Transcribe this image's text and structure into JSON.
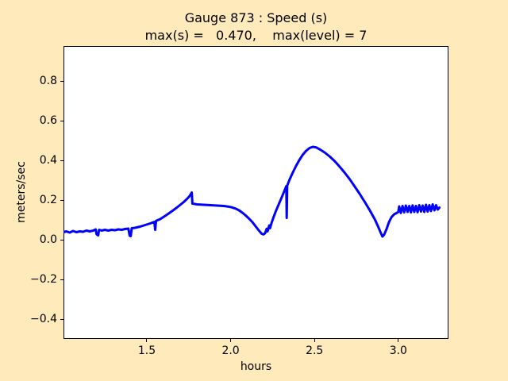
{
  "figure": {
    "background_color": "#ffeabb",
    "plot_background_color": "#ffffff",
    "spine_color": "#000000",
    "title_line1": "Gauge 873 : Speed (s)",
    "title_line2": "max(s) =   0.470,    max(level) = 7",
    "xlabel": "hours",
    "ylabel": "meters/sec"
  },
  "chart_data": {
    "type": "line",
    "title": "Gauge 873 : Speed (s)",
    "subtitle": "max(s) =   0.470,    max(level) = 7",
    "max_s": 0.47,
    "max_level": 7,
    "xlabel": "hours",
    "ylabel": "meters/sec",
    "xlim": [
      1.003,
      3.299
    ],
    "ylim": [
      -0.5,
      0.976
    ],
    "xticks": [
      1.5,
      2.0,
      2.5,
      3.0
    ],
    "xtick_labels": [
      "1.5",
      "2.0",
      "2.5",
      "3.0"
    ],
    "yticks": [
      -0.4,
      -0.2,
      0.0,
      0.2,
      0.4,
      0.6,
      0.8
    ],
    "ytick_labels": [
      "−0.4",
      "−0.2",
      "0.0",
      "0.2",
      "0.4",
      "0.6",
      "0.8"
    ],
    "grid": false,
    "legend": null,
    "series": [
      {
        "name": "speed",
        "color": "#0000ff",
        "line_width": 3,
        "points": [
          [
            1.003,
            0.038
          ],
          [
            1.02,
            0.042
          ],
          [
            1.04,
            0.036
          ],
          [
            1.06,
            0.044
          ],
          [
            1.08,
            0.038
          ],
          [
            1.1,
            0.042
          ],
          [
            1.12,
            0.04
          ],
          [
            1.14,
            0.046
          ],
          [
            1.16,
            0.042
          ],
          [
            1.18,
            0.046
          ],
          [
            1.195,
            0.052
          ],
          [
            1.2,
            0.028
          ],
          [
            1.21,
            0.022
          ],
          [
            1.215,
            0.05
          ],
          [
            1.23,
            0.046
          ],
          [
            1.25,
            0.05
          ],
          [
            1.27,
            0.046
          ],
          [
            1.29,
            0.05
          ],
          [
            1.31,
            0.048
          ],
          [
            1.33,
            0.052
          ],
          [
            1.35,
            0.05
          ],
          [
            1.37,
            0.054
          ],
          [
            1.39,
            0.056
          ],
          [
            1.398,
            0.02
          ],
          [
            1.404,
            0.018
          ],
          [
            1.41,
            0.058
          ],
          [
            1.43,
            0.06
          ],
          [
            1.46,
            0.066
          ],
          [
            1.49,
            0.074
          ],
          [
            1.52,
            0.082
          ],
          [
            1.545,
            0.09
          ],
          [
            1.55,
            0.05
          ],
          [
            1.555,
            0.095
          ],
          [
            1.58,
            0.104
          ],
          [
            1.6,
            0.115
          ],
          [
            1.62,
            0.126
          ],
          [
            1.64,
            0.138
          ],
          [
            1.66,
            0.15
          ],
          [
            1.68,
            0.163
          ],
          [
            1.7,
            0.176
          ],
          [
            1.72,
            0.19
          ],
          [
            1.74,
            0.206
          ],
          [
            1.755,
            0.22
          ],
          [
            1.768,
            0.238
          ],
          [
            1.772,
            0.182
          ],
          [
            1.8,
            0.178
          ],
          [
            1.84,
            0.176
          ],
          [
            1.88,
            0.174
          ],
          [
            1.92,
            0.172
          ],
          [
            1.96,
            0.17
          ],
          [
            2.0,
            0.165
          ],
          [
            2.03,
            0.157
          ],
          [
            2.05,
            0.148
          ],
          [
            2.07,
            0.136
          ],
          [
            2.09,
            0.122
          ],
          [
            2.11,
            0.106
          ],
          [
            2.13,
            0.088
          ],
          [
            2.15,
            0.066
          ],
          [
            2.17,
            0.045
          ],
          [
            2.185,
            0.03
          ],
          [
            2.195,
            0.027
          ],
          [
            2.205,
            0.032
          ],
          [
            2.215,
            0.055
          ],
          [
            2.22,
            0.042
          ],
          [
            2.23,
            0.072
          ],
          [
            2.235,
            0.058
          ],
          [
            2.245,
            0.088
          ],
          [
            2.255,
            0.112
          ],
          [
            2.27,
            0.145
          ],
          [
            2.285,
            0.175
          ],
          [
            2.3,
            0.205
          ],
          [
            2.315,
            0.235
          ],
          [
            2.328,
            0.262
          ],
          [
            2.332,
            0.27
          ],
          [
            2.334,
            0.11
          ],
          [
            2.337,
            0.272
          ],
          [
            2.35,
            0.3
          ],
          [
            2.37,
            0.338
          ],
          [
            2.39,
            0.372
          ],
          [
            2.41,
            0.402
          ],
          [
            2.43,
            0.428
          ],
          [
            2.45,
            0.448
          ],
          [
            2.47,
            0.462
          ],
          [
            2.49,
            0.468
          ],
          [
            2.51,
            0.465
          ],
          [
            2.53,
            0.456
          ],
          [
            2.56,
            0.44
          ],
          [
            2.59,
            0.42
          ],
          [
            2.62,
            0.396
          ],
          [
            2.65,
            0.368
          ],
          [
            2.68,
            0.338
          ],
          [
            2.71,
            0.305
          ],
          [
            2.74,
            0.268
          ],
          [
            2.77,
            0.23
          ],
          [
            2.8,
            0.19
          ],
          [
            2.83,
            0.148
          ],
          [
            2.86,
            0.102
          ],
          [
            2.88,
            0.065
          ],
          [
            2.895,
            0.035
          ],
          [
            2.905,
            0.016
          ],
          [
            2.915,
            0.025
          ],
          [
            2.93,
            0.055
          ],
          [
            2.945,
            0.09
          ],
          [
            2.96,
            0.115
          ],
          [
            2.975,
            0.128
          ],
          [
            2.99,
            0.135
          ],
          [
            3.0,
            0.14
          ],
          [
            3.005,
            0.168
          ],
          [
            3.015,
            0.135
          ],
          [
            3.025,
            0.17
          ],
          [
            3.035,
            0.138
          ],
          [
            3.045,
            0.172
          ],
          [
            3.055,
            0.14
          ],
          [
            3.065,
            0.17
          ],
          [
            3.075,
            0.138
          ],
          [
            3.085,
            0.173
          ],
          [
            3.095,
            0.14
          ],
          [
            3.105,
            0.17
          ],
          [
            3.115,
            0.139
          ],
          [
            3.125,
            0.174
          ],
          [
            3.135,
            0.142
          ],
          [
            3.145,
            0.172
          ],
          [
            3.155,
            0.14
          ],
          [
            3.165,
            0.176
          ],
          [
            3.175,
            0.142
          ],
          [
            3.185,
            0.174
          ],
          [
            3.195,
            0.145
          ],
          [
            3.205,
            0.178
          ],
          [
            3.215,
            0.148
          ],
          [
            3.225,
            0.174
          ],
          [
            3.235,
            0.152
          ],
          [
            3.245,
            0.162
          ]
        ]
      }
    ]
  }
}
